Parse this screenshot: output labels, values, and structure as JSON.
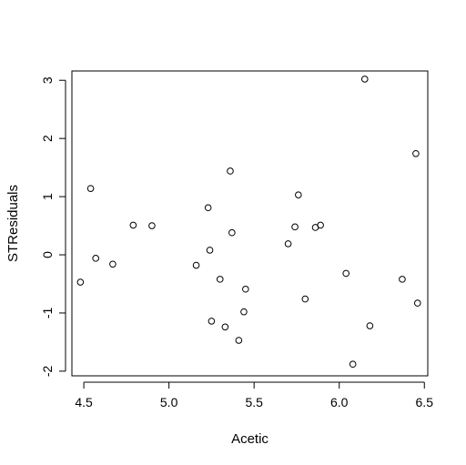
{
  "chart_data": {
    "type": "scatter",
    "title": "",
    "xlabel": "Acetic",
    "ylabel": "STResiduals",
    "xlim": [
      4.43,
      6.52
    ],
    "ylim": [
      -2.08,
      3.16
    ],
    "x_ticks": [
      4.5,
      5.0,
      5.5,
      6.0,
      6.5
    ],
    "x_tick_labels": [
      "4.5",
      "5.0",
      "5.5",
      "6.0",
      "6.5"
    ],
    "y_ticks": [
      -2,
      -1,
      0,
      1,
      2,
      3
    ],
    "y_tick_labels": [
      "-2",
      "-1",
      "0",
      "1",
      "2",
      "3"
    ],
    "grid": false,
    "marker": "open-circle",
    "points": [
      {
        "x": 4.48,
        "y": -0.47
      },
      {
        "x": 4.54,
        "y": 1.14
      },
      {
        "x": 4.57,
        "y": -0.06
      },
      {
        "x": 4.67,
        "y": -0.16
      },
      {
        "x": 4.79,
        "y": 0.51
      },
      {
        "x": 4.9,
        "y": 0.5
      },
      {
        "x": 5.16,
        "y": -0.18
      },
      {
        "x": 5.23,
        "y": 0.81
      },
      {
        "x": 5.24,
        "y": 0.08
      },
      {
        "x": 5.25,
        "y": -1.14
      },
      {
        "x": 5.3,
        "y": -0.42
      },
      {
        "x": 5.33,
        "y": -1.24
      },
      {
        "x": 5.36,
        "y": 1.44
      },
      {
        "x": 5.37,
        "y": 0.38
      },
      {
        "x": 5.41,
        "y": -1.47
      },
      {
        "x": 5.44,
        "y": -0.98
      },
      {
        "x": 5.45,
        "y": -0.59
      },
      {
        "x": 5.7,
        "y": 0.19
      },
      {
        "x": 5.74,
        "y": 0.48
      },
      {
        "x": 5.76,
        "y": 1.03
      },
      {
        "x": 5.8,
        "y": -0.76
      },
      {
        "x": 5.86,
        "y": 0.47
      },
      {
        "x": 5.89,
        "y": 0.51
      },
      {
        "x": 6.04,
        "y": -0.32
      },
      {
        "x": 6.08,
        "y": -1.88
      },
      {
        "x": 6.15,
        "y": 3.02
      },
      {
        "x": 6.18,
        "y": -1.22
      },
      {
        "x": 6.37,
        "y": -0.42
      },
      {
        "x": 6.45,
        "y": 1.74
      },
      {
        "x": 6.46,
        "y": -0.83
      }
    ]
  }
}
